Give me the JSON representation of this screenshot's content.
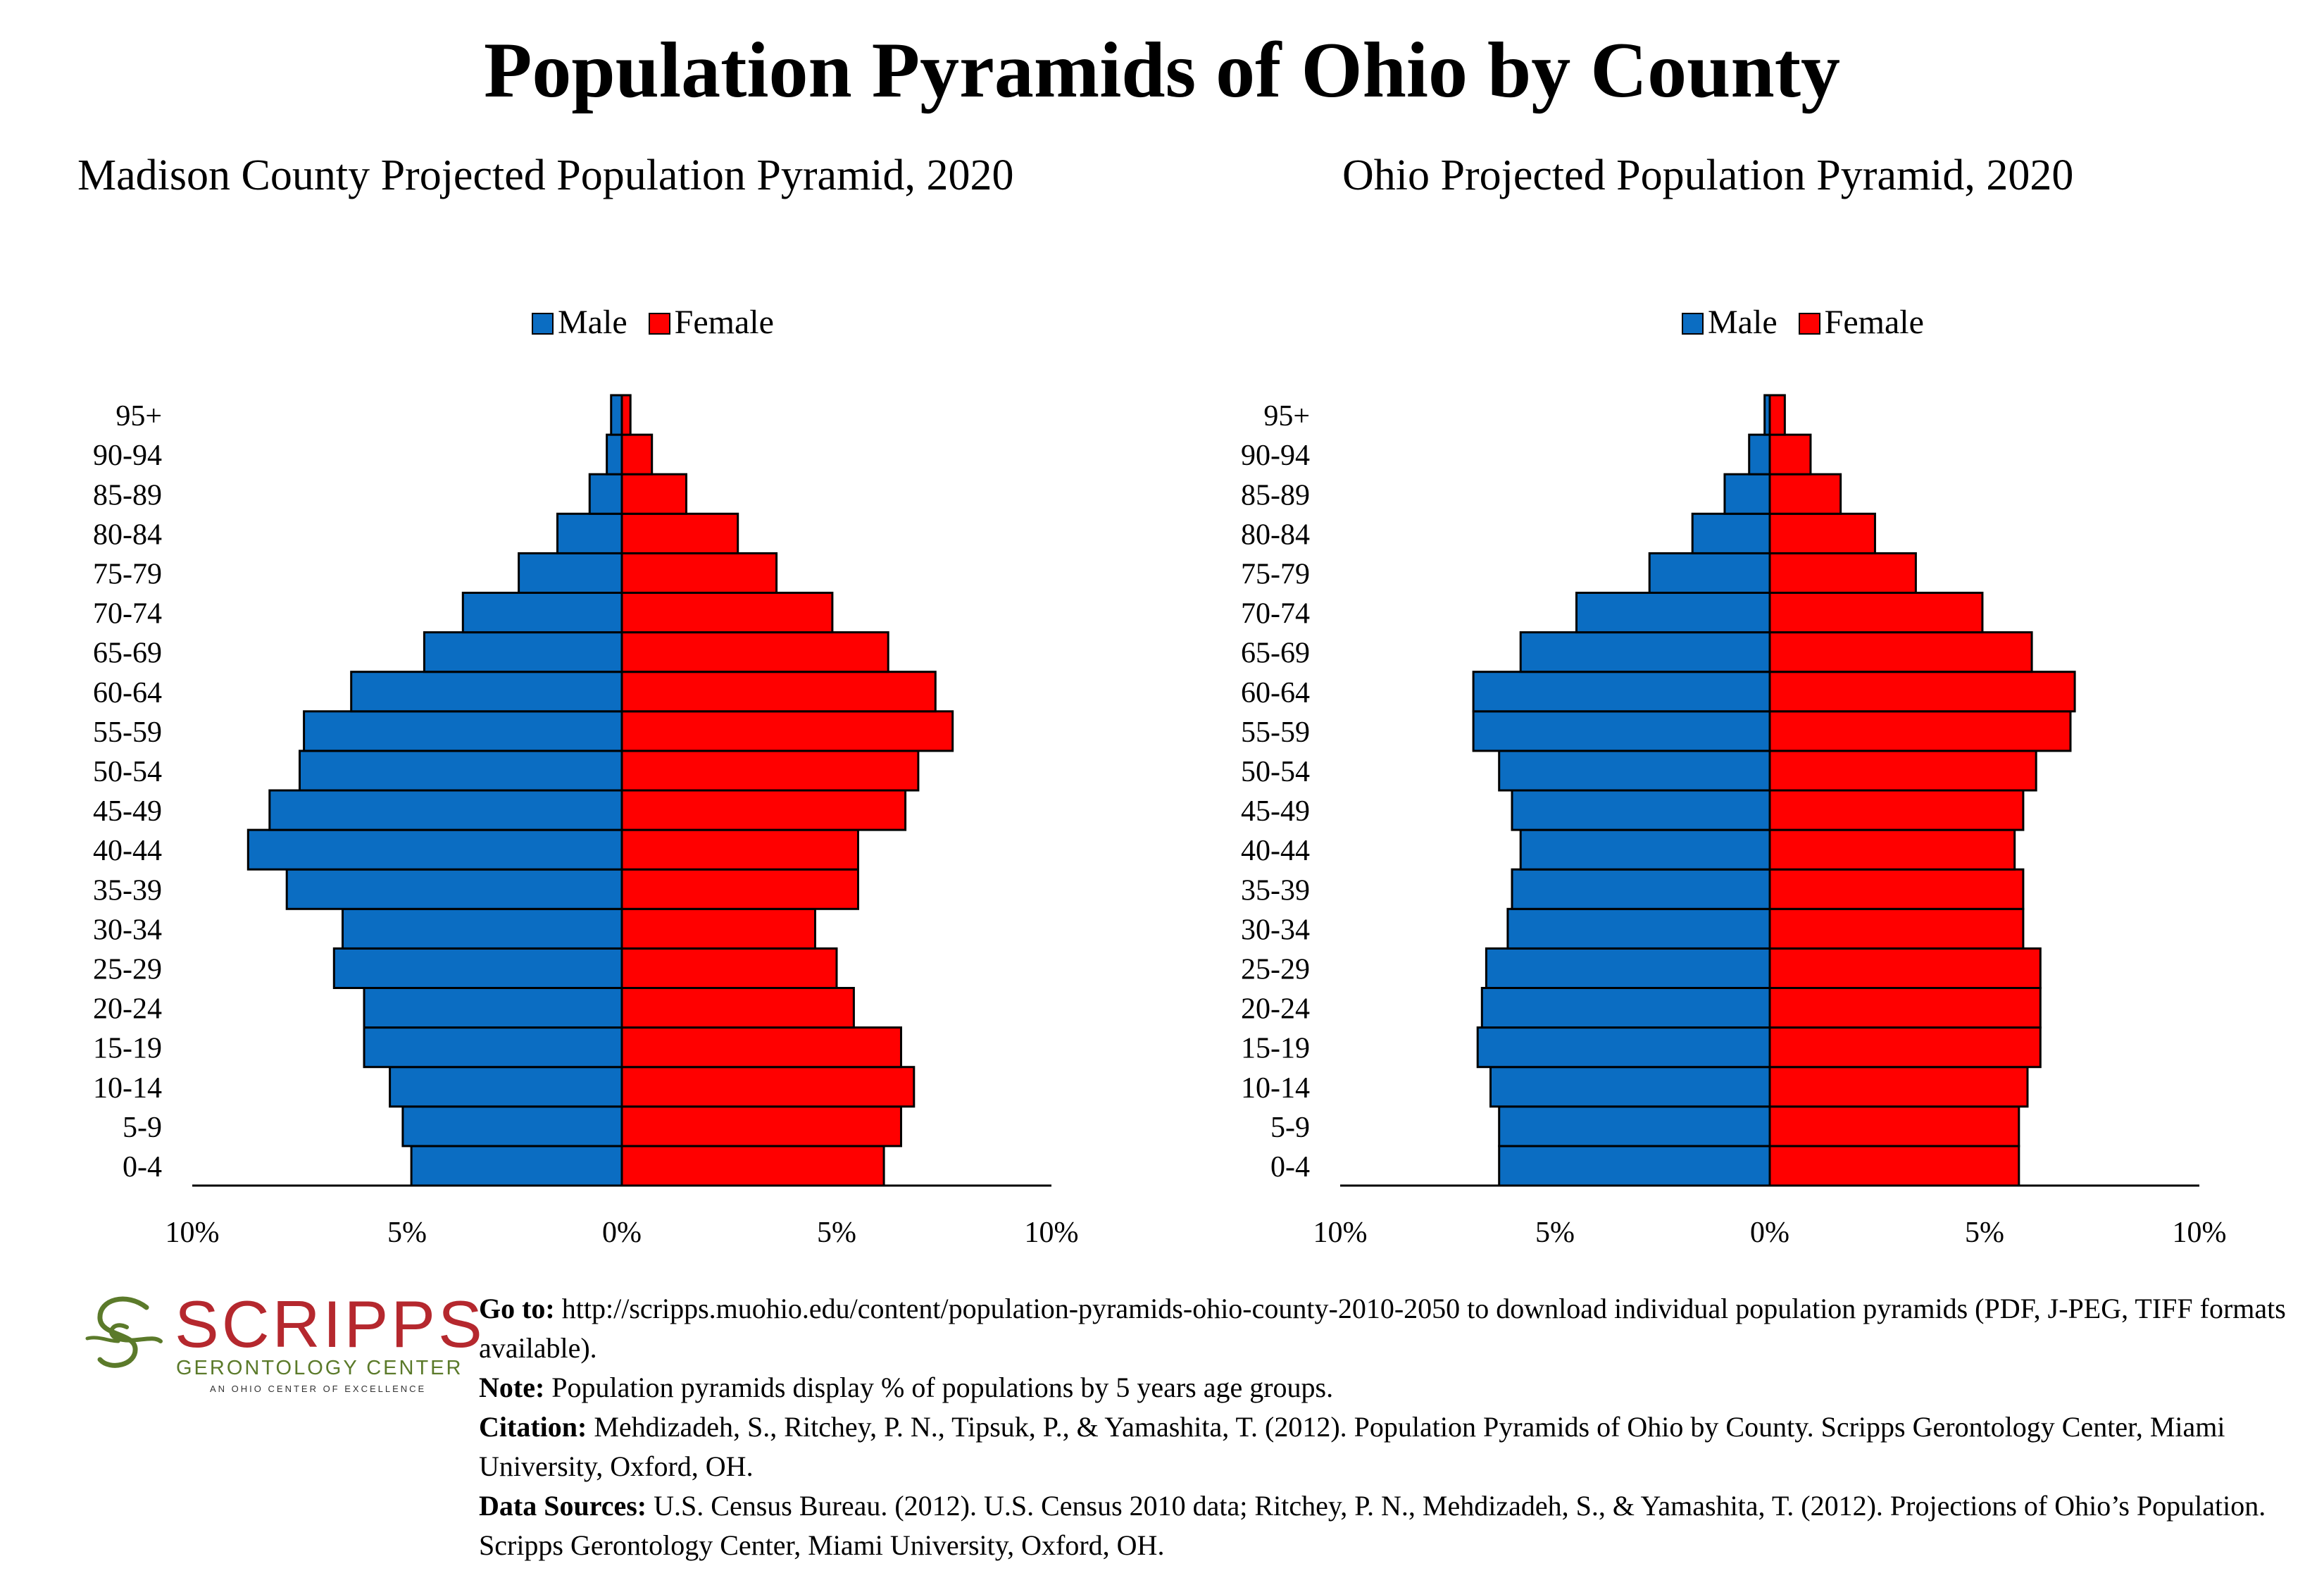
{
  "page": {
    "title": "Population Pyramids of Ohio by County"
  },
  "legend": {
    "male": "Male",
    "female": "Female"
  },
  "colors": {
    "male": "#0b6dc2",
    "female": "#ff0000",
    "outline": "#000000"
  },
  "chart_data": [
    {
      "type": "bar",
      "orientation": "horizontal-pyramid",
      "title": "Madison County Projected Population Pyramid, 2020",
      "categories": [
        "0-4",
        "5-9",
        "10-14",
        "15-19",
        "20-24",
        "25-29",
        "30-34",
        "35-39",
        "40-44",
        "45-49",
        "50-54",
        "55-59",
        "60-64",
        "65-69",
        "70-74",
        "75-79",
        "80-84",
        "85-89",
        "90-94",
        "95+"
      ],
      "series": [
        {
          "name": "Male",
          "values": [
            4.9,
            5.1,
            5.4,
            6.0,
            6.0,
            6.7,
            6.5,
            7.8,
            8.7,
            8.2,
            7.5,
            7.4,
            6.3,
            4.6,
            3.7,
            2.4,
            1.5,
            0.75,
            0.35,
            0.25
          ]
        },
        {
          "name": "Female",
          "values": [
            6.1,
            6.5,
            6.8,
            6.5,
            5.4,
            5.0,
            4.5,
            5.5,
            5.5,
            6.6,
            6.9,
            7.7,
            7.3,
            6.2,
            4.9,
            3.6,
            2.7,
            1.5,
            0.7,
            0.2
          ]
        }
      ],
      "xlim": [
        -10,
        10
      ],
      "xticks": [
        "10%",
        "5%",
        "0%",
        "5%",
        "10%"
      ],
      "legend_position": "top-center"
    },
    {
      "type": "bar",
      "orientation": "horizontal-pyramid",
      "title": "Ohio Projected Population Pyramid, 2020",
      "categories": [
        "0-4",
        "5-9",
        "10-14",
        "15-19",
        "20-24",
        "25-29",
        "30-34",
        "35-39",
        "40-44",
        "45-49",
        "50-54",
        "55-59",
        "60-64",
        "65-69",
        "70-74",
        "75-79",
        "80-84",
        "85-89",
        "90-94",
        "95+"
      ],
      "series": [
        {
          "name": "Male",
          "values": [
            6.3,
            6.3,
            6.5,
            6.8,
            6.7,
            6.6,
            6.1,
            6.0,
            5.8,
            6.0,
            6.3,
            6.9,
            6.9,
            5.8,
            4.5,
            2.8,
            1.8,
            1.05,
            0.48,
            0.12
          ]
        },
        {
          "name": "Female",
          "values": [
            5.8,
            5.8,
            6.0,
            6.3,
            6.3,
            6.3,
            5.9,
            5.9,
            5.7,
            5.9,
            6.2,
            7.0,
            7.1,
            6.1,
            4.95,
            3.4,
            2.45,
            1.65,
            0.95,
            0.35
          ]
        }
      ],
      "xlim": [
        -10,
        10
      ],
      "xticks": [
        "10%",
        "5%",
        "0%",
        "5%",
        "10%"
      ],
      "legend_position": "top-center"
    }
  ],
  "logo": {
    "wordmark": "SCRIPPS",
    "subtitle": "GERONTOLOGY CENTER",
    "tagline": "AN OHIO CENTER OF EXCELLENCE"
  },
  "notes": {
    "goto_label": "Go to:",
    "goto_text": " http://scripps.muohio.edu/content/population-pyramids-ohio-county-2010-2050 to download individual population pyramids (PDF, J-PEG, TIFF formats available).",
    "note_label": "Note:",
    "note_text": " Population pyramids display % of populations by 5 years age groups.",
    "citation_label": "Citation:",
    "citation_text": " Mehdizadeh, S., Ritchey, P. N., Tipsuk, P., & Yamashita, T. (2012). Population Pyramids of Ohio by County. Scripps Gerontology Center, Miami University, Oxford, OH.",
    "sources_label": "Data Sources:",
    "sources_text": " U.S. Census Bureau. (2012). U.S. Census 2010 data; Ritchey, P. N., Mehdizadeh, S., & Yamashita, T. (2012). Projections of Ohio’s Population. Scripps Gerontology Center, Miami University, Oxford, OH."
  }
}
